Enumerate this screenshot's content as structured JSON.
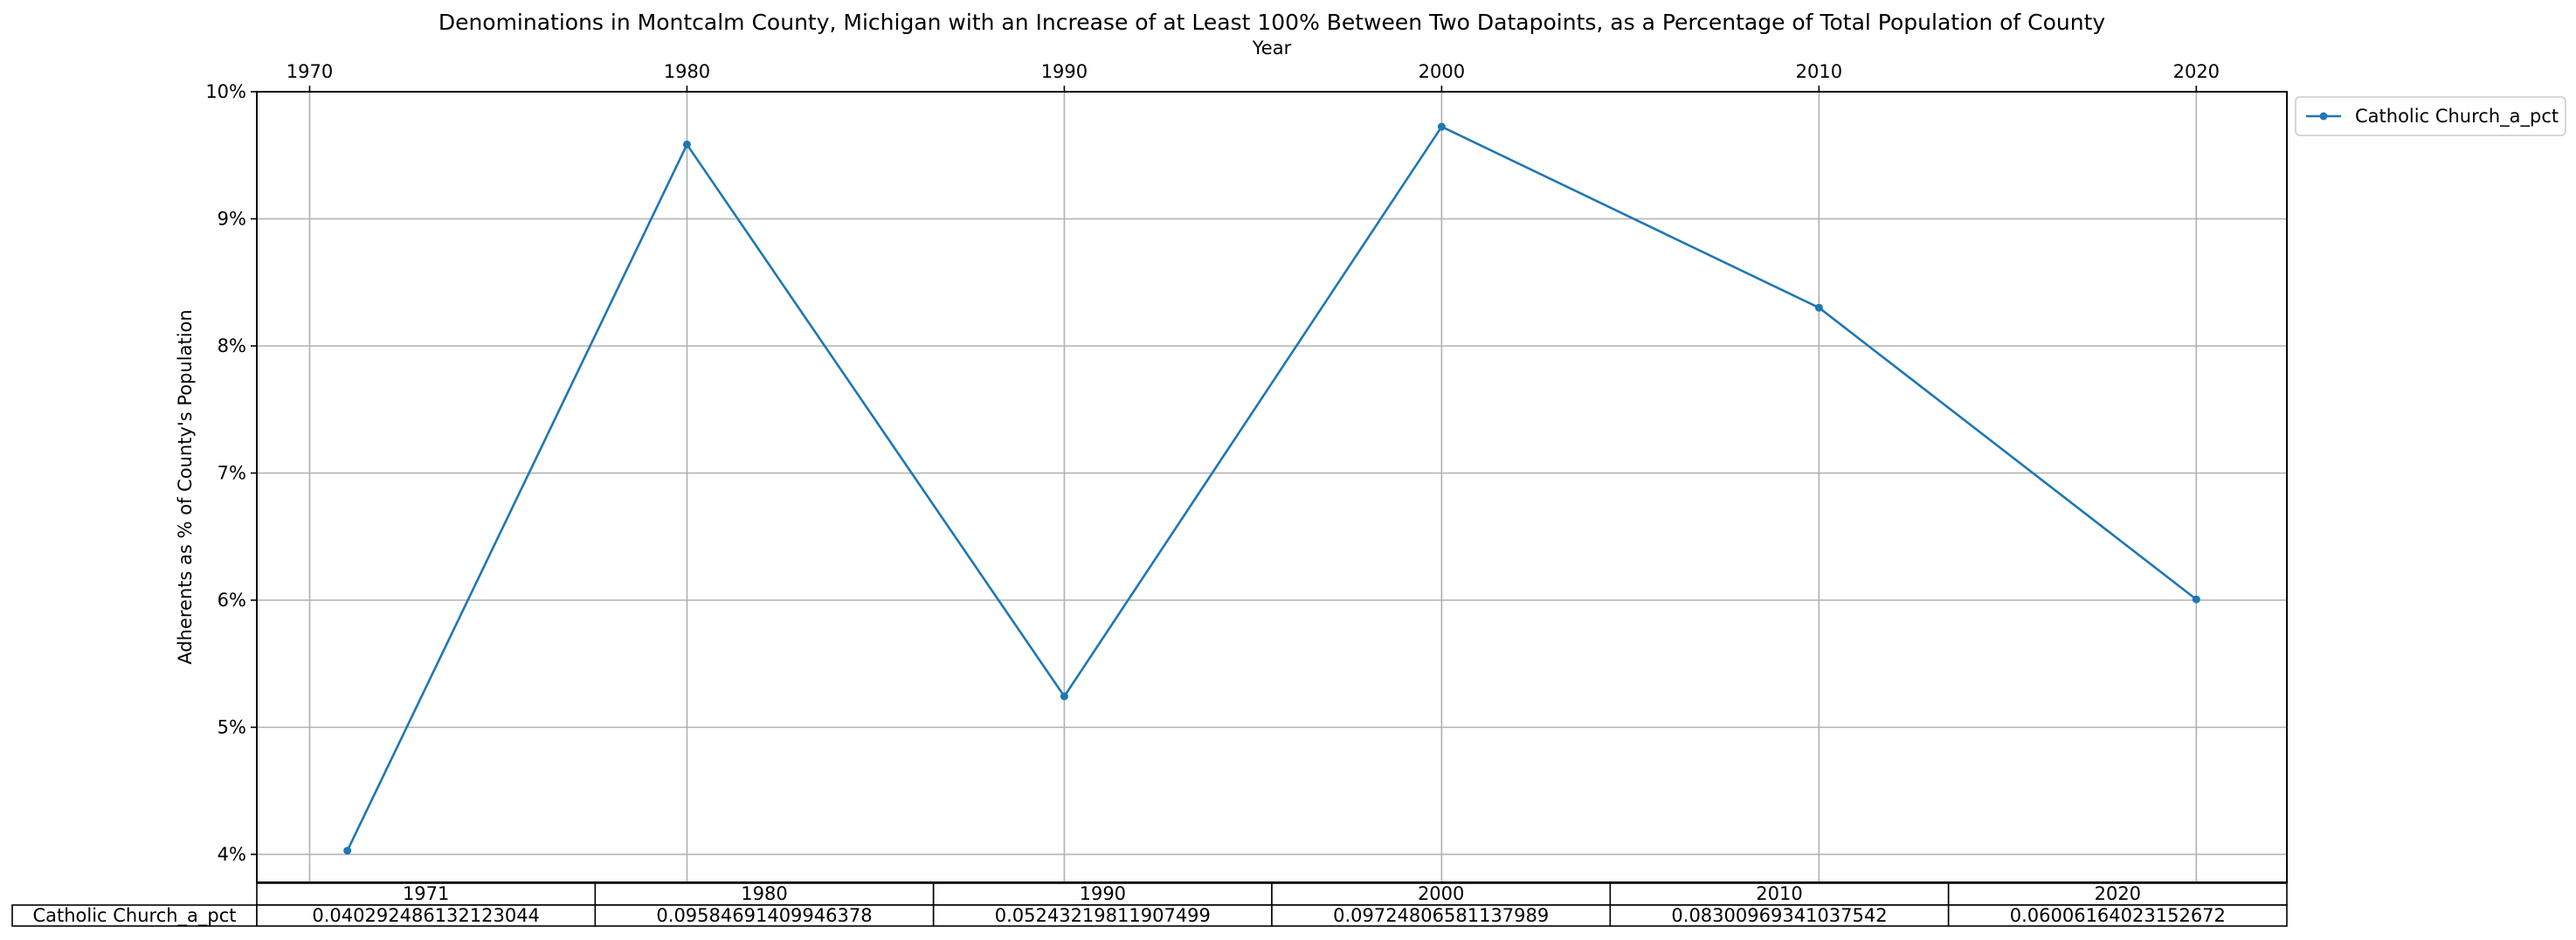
{
  "chart_data": {
    "type": "line",
    "title": "Denominations in Montcalm County, Michigan with an Increase of at Least 100% Between Two Datapoints, as a Percentage of Total Population of County",
    "xlabel": "Year",
    "ylabel": "Adherents as % of County's Population",
    "x_ticks": [
      "1970",
      "1980",
      "1990",
      "2000",
      "2010",
      "2020"
    ],
    "y_ticks": [
      "4%",
      "5%",
      "6%",
      "7%",
      "8%",
      "9%",
      "10%"
    ],
    "xlim": [
      1968.6,
      2022.4
    ],
    "ylim": [
      0.0378,
      0.1
    ],
    "grid": true,
    "legend_position": "outside-top-right",
    "series": [
      {
        "name": "Catholic Church_a_pct",
        "color": "#1f77b4",
        "x": [
          1971,
          1980,
          1990,
          2000,
          2010,
          2020
        ],
        "y": [
          0.040292486132123044,
          0.09584691409946378,
          0.05243219811907499,
          0.09724806581137989,
          0.08300969341037542,
          0.06006164023152672
        ]
      }
    ],
    "table": {
      "col_labels": [
        "1971",
        "1980",
        "1990",
        "2000",
        "2010",
        "2020"
      ],
      "row_label": "Catholic Church_a_pct",
      "cells": [
        "0.040292486132123044",
        "0.09584691409946378",
        "0.05243219811907499",
        "0.09724806581137989",
        "0.08300969341037542",
        "0.06006164023152672"
      ]
    }
  }
}
